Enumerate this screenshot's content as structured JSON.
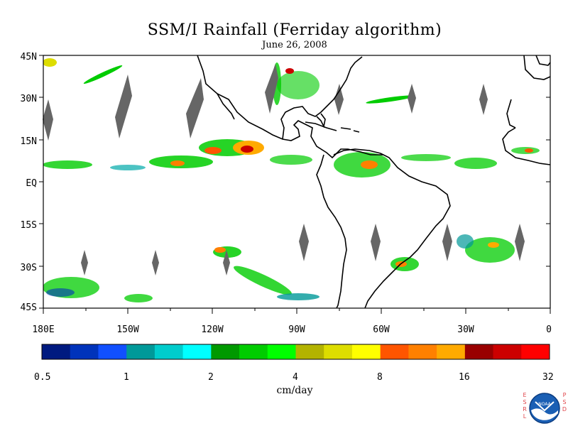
{
  "title": "SSM/I Rainfall (Ferriday algorithm)",
  "subtitle": "June 26, 2008",
  "axes": {
    "lat_labels": [
      "45N",
      "30N",
      "15N",
      "EQ",
      "15S",
      "30S",
      "45S"
    ],
    "lon_labels": [
      "180E",
      "150W",
      "120W",
      "90W",
      "60W",
      "30W",
      "0"
    ]
  },
  "colorbar": {
    "unit": "cm/day",
    "tick_labels": [
      "0.5",
      "1",
      "2",
      "4",
      "8",
      "16",
      "32"
    ],
    "colors": [
      "#001a80",
      "#0033bb",
      "#1150ff",
      "#009999",
      "#00cccc",
      "#00ffff",
      "#009900",
      "#00cc00",
      "#00ff00",
      "#b3b300",
      "#dddd00",
      "#ffff00",
      "#ff5500",
      "#ff8000",
      "#ffaa00",
      "#990000",
      "#cc0000",
      "#ff0000"
    ]
  },
  "logo": {
    "left_letters": "ESRL",
    "right_letters": "PSD",
    "emblem_text": "NOAA"
  }
}
